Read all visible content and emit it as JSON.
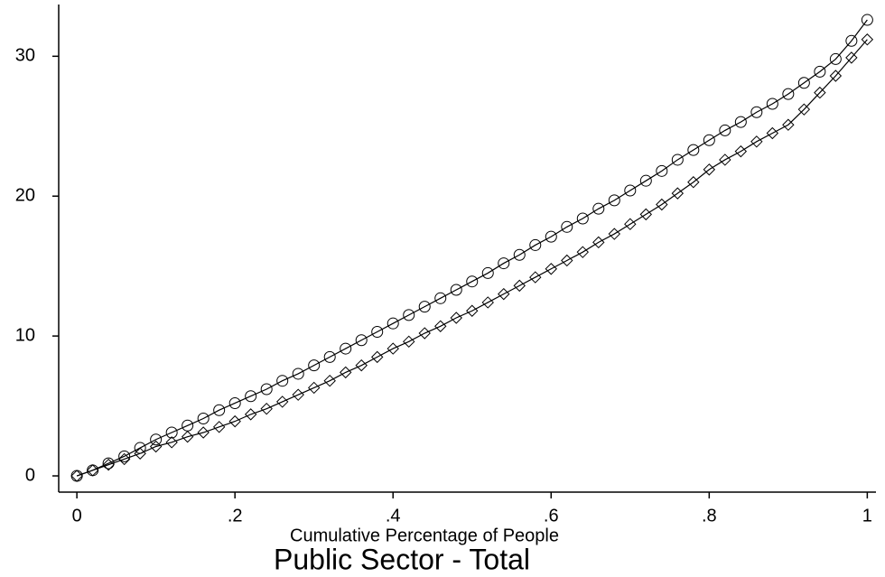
{
  "chart_data": {
    "type": "line",
    "title": "Public Sector - Total",
    "x_label": "Cumulative Percentage of People",
    "x": [
      0,
      0.02,
      0.04,
      0.06,
      0.08,
      0.1,
      0.12,
      0.14,
      0.16,
      0.18,
      0.2,
      0.22,
      0.24,
      0.26,
      0.28,
      0.3,
      0.32,
      0.34,
      0.36,
      0.38,
      0.4,
      0.42,
      0.44,
      0.46,
      0.48,
      0.5,
      0.52,
      0.54,
      0.56,
      0.58,
      0.6,
      0.62,
      0.64,
      0.66,
      0.68,
      0.7,
      0.72,
      0.74,
      0.76,
      0.78,
      0.8,
      0.82,
      0.84,
      0.86,
      0.88,
      0.9,
      0.92,
      0.94,
      0.96,
      0.98,
      1
    ],
    "series": [
      {
        "color": "#000000",
        "marker": "circle",
        "values": [
          0,
          0.4,
          0.9,
          1.4,
          2.0,
          2.6,
          3.1,
          3.6,
          4.1,
          4.7,
          5.2,
          5.7,
          6.2,
          6.8,
          7.3,
          7.9,
          8.5,
          9.1,
          9.7,
          10.3,
          10.9,
          11.5,
          12.1,
          12.7,
          13.3,
          13.9,
          14.5,
          15.2,
          15.8,
          16.5,
          17.1,
          17.8,
          18.4,
          19.1,
          19.7,
          20.4,
          21.1,
          21.8,
          22.6,
          23.3,
          24.0,
          24.7,
          25.3,
          26.0,
          26.6,
          27.3,
          28.1,
          28.9,
          29.8,
          31.1,
          32.6
        ]
      },
      {
        "color": "#000000",
        "marker": "diamond",
        "values": [
          0,
          0.4,
          0.8,
          1.2,
          1.6,
          2.1,
          2.4,
          2.8,
          3.1,
          3.5,
          3.9,
          4.4,
          4.8,
          5.3,
          5.8,
          6.3,
          6.8,
          7.4,
          7.9,
          8.5,
          9.1,
          9.6,
          10.2,
          10.7,
          11.3,
          11.8,
          12.4,
          13.0,
          13.6,
          14.2,
          14.8,
          15.4,
          16.0,
          16.7,
          17.3,
          18.0,
          18.7,
          19.4,
          20.2,
          21.0,
          21.9,
          22.6,
          23.2,
          23.9,
          24.5,
          25.1,
          26.2,
          27.4,
          28.6,
          29.9,
          31.2
        ]
      }
    ],
    "xlim": [
      -0.023,
      1.011
    ],
    "ylim": [
      -1.16,
      33.7
    ],
    "xticks": [
      0,
      {
        "value": 0.2,
        "label": ".2"
      },
      {
        "value": 0.4,
        "label": ".4"
      },
      {
        "value": 0.6,
        "label": ".6"
      },
      {
        "value": 0.8,
        "label": ".8"
      },
      1
    ],
    "yticks": [
      0,
      10,
      20,
      30
    ],
    "grid": false
  }
}
